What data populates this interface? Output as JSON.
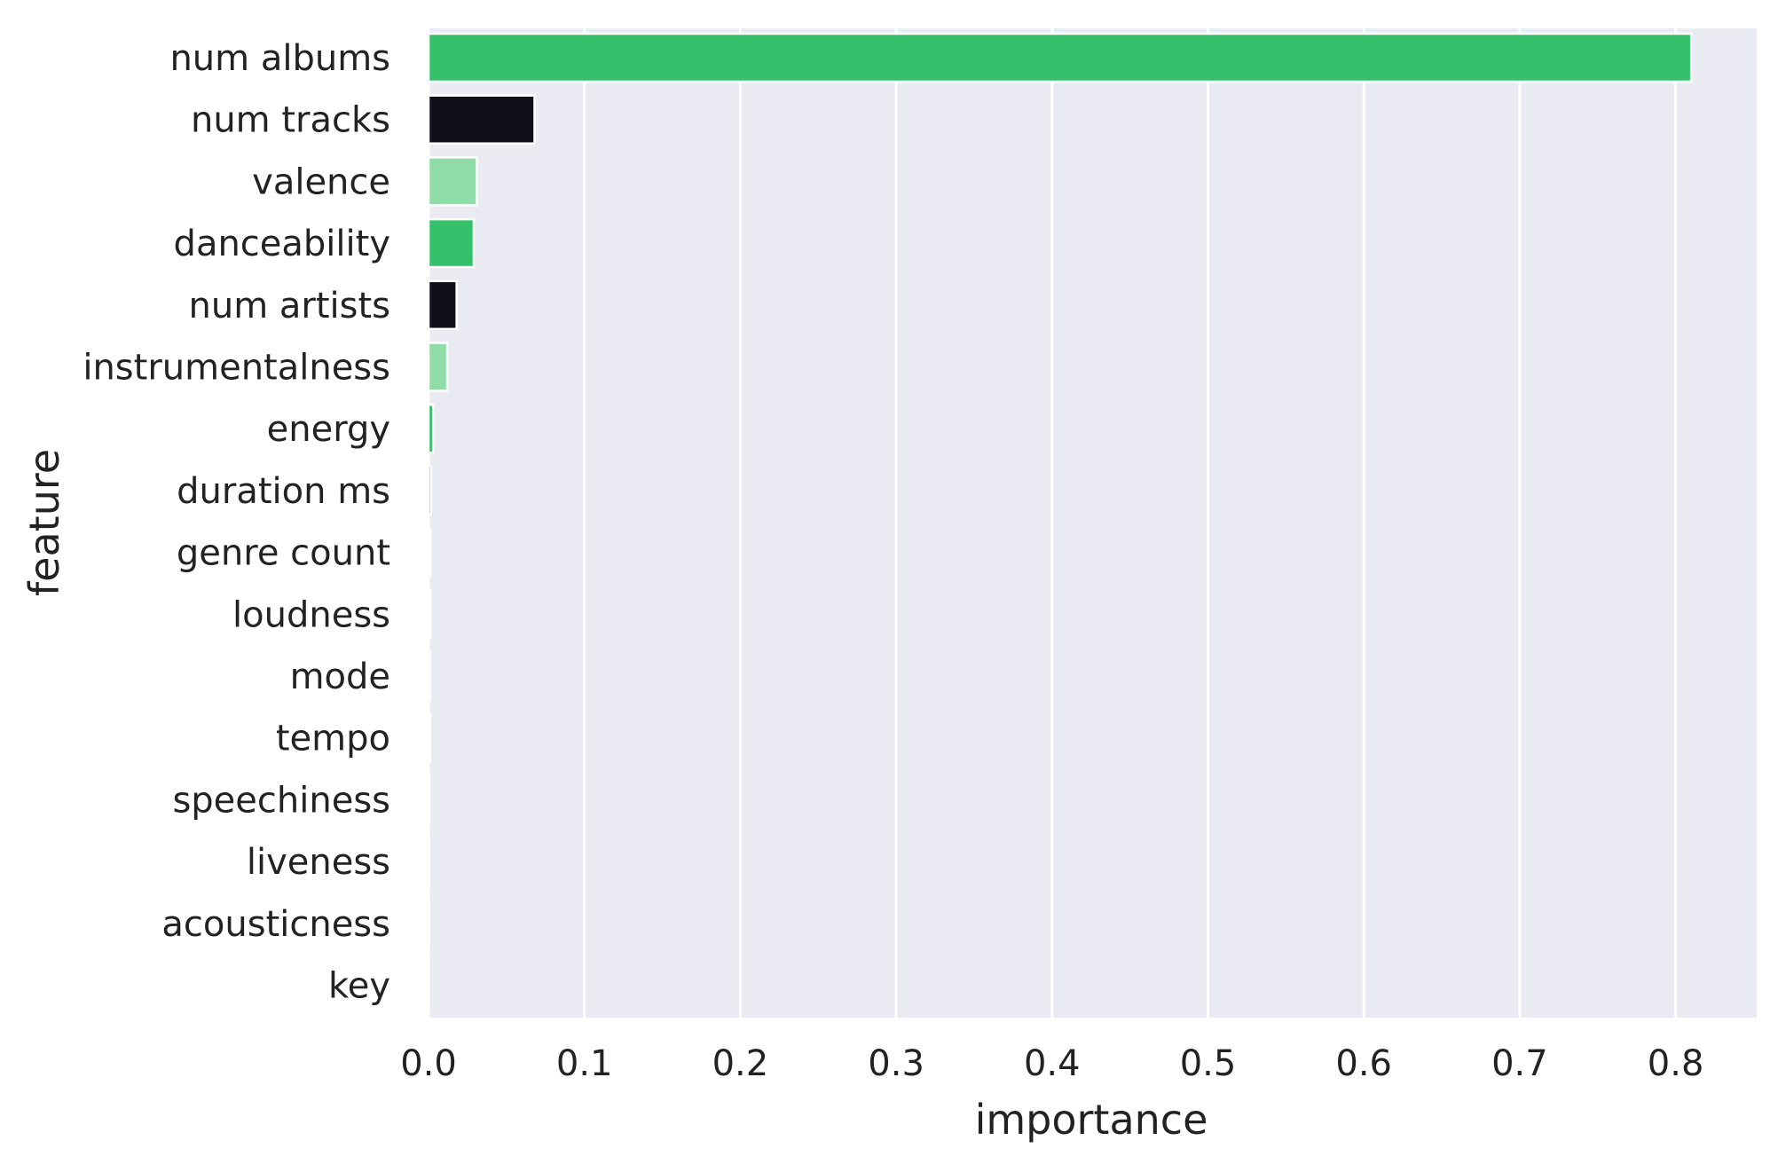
{
  "chart_data": {
    "type": "bar",
    "orientation": "horizontal",
    "xlabel": "importance",
    "ylabel": "feature",
    "xlim": [
      0,
      0.85
    ],
    "x_ticks": [
      "0.0",
      "0.1",
      "0.2",
      "0.3",
      "0.4",
      "0.5",
      "0.6",
      "0.7",
      "0.8"
    ],
    "grid": true,
    "background_color": "#eaeaf2",
    "palette": [
      "#35c16b",
      "#110f1c",
      "#8fdca9"
    ],
    "categories": [
      "num albums",
      "num tracks",
      "valence",
      "danceability",
      "num artists",
      "instrumentalness",
      "energy",
      "duration ms",
      "genre count",
      "loudness",
      "mode",
      "tempo",
      "speechiness",
      "liveness",
      "acousticness",
      "key"
    ],
    "values": [
      0.81,
      0.068,
      0.031,
      0.029,
      0.018,
      0.012,
      0.003,
      0.0015,
      0.0012,
      0.0012,
      0.0011,
      0.001,
      0.0006,
      0.0004,
      0.0003,
      0.0002
    ]
  }
}
